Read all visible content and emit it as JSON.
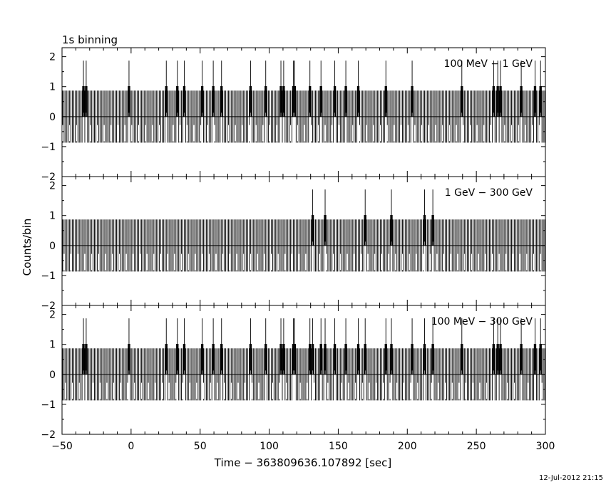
{
  "title": "1s binning",
  "timestamp": "12-Jul-2012 21:15",
  "chart_data": {
    "type": "bar",
    "xlabel": "Time − 363809636.107892 [sec]",
    "ylabel": "Counts/bin",
    "xlim": [
      -50,
      300
    ],
    "ylim": [
      -2,
      2.3
    ],
    "x_ticks": [
      "−50",
      "0",
      "50",
      "100",
      "150",
      "200",
      "250",
      "300"
    ],
    "x_tick_values": [
      -50,
      0,
      50,
      100,
      150,
      200,
      250,
      300
    ],
    "y_ticks": [
      "−2",
      "−1",
      "0",
      "1",
      "2"
    ],
    "y_tick_values": [
      -2,
      -1,
      0,
      1,
      2
    ],
    "error_bar_sigma": 0.87,
    "panels": [
      {
        "band": "100 MeV − 1 GeV",
        "count_times": [
          -35,
          -33,
          -2,
          25,
          33,
          38,
          51,
          59,
          65,
          86,
          97,
          108,
          110,
          117,
          118,
          129,
          137,
          147,
          155,
          164,
          184,
          203,
          239,
          262,
          265,
          267,
          282,
          292,
          296
        ]
      },
      {
        "band": "1 GeV − 300 GeV",
        "count_times": [
          131,
          140,
          169,
          188,
          212,
          218
        ]
      },
      {
        "band": "100 MeV − 300 GeV",
        "count_times": [
          -35,
          -33,
          -2,
          25,
          33,
          38,
          51,
          59,
          65,
          86,
          97,
          108,
          110,
          117,
          118,
          129,
          131,
          137,
          140,
          147,
          155,
          164,
          169,
          184,
          188,
          203,
          212,
          218,
          239,
          262,
          265,
          267,
          282,
          292,
          296
        ]
      }
    ]
  }
}
